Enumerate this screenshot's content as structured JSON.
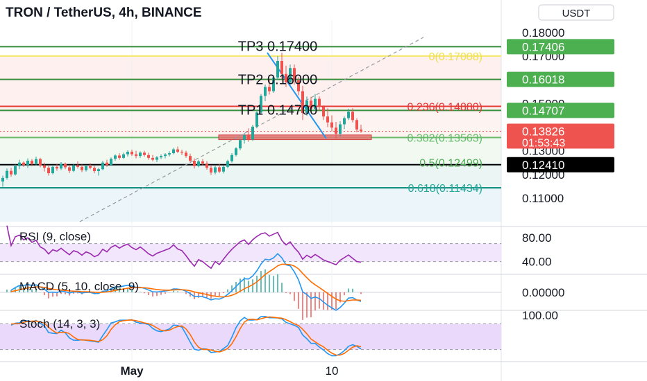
{
  "header": {
    "title": "TRON / TetherUS, 4h, BINANCE",
    "currency": "USDT"
  },
  "chart_data": {
    "type": "candlestick",
    "symbol": "TRON / TetherUS",
    "interval": "4h",
    "exchange": "BINANCE",
    "main_pane": {
      "ylim": [
        0.1,
        0.185
      ],
      "y_ticks": [
        "0.18000",
        "0.17000",
        "0.16000",
        "0.15000",
        "0.13000",
        "0.12000",
        "0.11000"
      ],
      "y_tick_values": [
        0.18,
        0.17,
        0.16,
        0.15,
        0.13,
        0.12,
        0.11
      ],
      "price_labels": [
        {
          "text": "0.17406",
          "value": 0.17406,
          "color": "#4caf50",
          "text_color": "#ffffff"
        },
        {
          "text": "0.16018",
          "value": 0.16018,
          "color": "#4caf50",
          "text_color": "#ffffff"
        },
        {
          "text": "0.14707",
          "value": 0.14707,
          "color": "#4caf50",
          "text_color": "#ffffff"
        },
        {
          "text": "0.13826",
          "value": 0.13826,
          "color": "#ef5350",
          "text_color": "#ffffff",
          "countdown": "01:53:43"
        },
        {
          "text": "0.12410",
          "value": 0.1241,
          "color": "#000000",
          "text_color": "#ffffff"
        }
      ],
      "horizontal_lines": [
        {
          "value": 0.17406,
          "color": "#388e3c"
        },
        {
          "value": 0.16018,
          "color": "#388e3c"
        },
        {
          "value": 0.14707,
          "color": "#388e3c"
        },
        {
          "value": 0.1488,
          "color": "#e53935"
        },
        {
          "value": 0.1356,
          "color": "#66bb6a"
        },
        {
          "value": 0.1241,
          "color": "#000000"
        },
        {
          "value": 0.11434,
          "color": "#00897b"
        },
        {
          "value": 0.17008,
          "color": "#f5e663"
        }
      ],
      "fib_levels": [
        {
          "label": "0(0.17008)",
          "value": 0.17008,
          "color": "#f0e050"
        },
        {
          "label": "0.236(0.14880)",
          "value": 0.1488,
          "color": "#e53935"
        },
        {
          "label": "0.382(0.13563)",
          "value": 0.13563,
          "color": "#66bb6a"
        },
        {
          "label": "0.5(0.12499)",
          "value": 0.12499,
          "color": "#4caf50"
        },
        {
          "label": "0.618(0.11434)",
          "value": 0.11434,
          "color": "#26a69a"
        }
      ],
      "annotations": [
        {
          "text": "TP3 0.17400",
          "value": 0.174
        },
        {
          "text": "TP2 0.16000",
          "value": 0.16
        },
        {
          "text": "TP1 0.14700",
          "value": 0.147
        }
      ],
      "candles": [
        [
          0.117,
          0.1195,
          0.1148,
          0.1185
        ],
        [
          0.1185,
          0.1225,
          0.1178,
          0.1215
        ],
        [
          0.1215,
          0.1228,
          0.119,
          0.12
        ],
        [
          0.12,
          0.1242,
          0.1195,
          0.1235
        ],
        [
          0.1235,
          0.1262,
          0.1222,
          0.125
        ],
        [
          0.125,
          0.1255,
          0.1232,
          0.124
        ],
        [
          0.124,
          0.1268,
          0.1228,
          0.1258
        ],
        [
          0.1258,
          0.1265,
          0.1235,
          0.1245
        ],
        [
          0.1245,
          0.1275,
          0.1238,
          0.1265
        ],
        [
          0.1265,
          0.127,
          0.123,
          0.1238
        ],
        [
          0.1238,
          0.125,
          0.1212,
          0.1228
        ],
        [
          0.1228,
          0.124,
          0.1195,
          0.1205
        ],
        [
          0.1205,
          0.124,
          0.12,
          0.1232
        ],
        [
          0.1232,
          0.1245,
          0.1215,
          0.1225
        ],
        [
          0.1225,
          0.1252,
          0.1218,
          0.1245
        ],
        [
          0.1245,
          0.125,
          0.1222,
          0.123
        ],
        [
          0.123,
          0.124,
          0.1205,
          0.1215
        ],
        [
          0.1215,
          0.1245,
          0.121,
          0.1238
        ],
        [
          0.1238,
          0.1255,
          0.1225,
          0.1232
        ],
        [
          0.1232,
          0.1242,
          0.121,
          0.1218
        ],
        [
          0.1218,
          0.124,
          0.1212,
          0.1235
        ],
        [
          0.1235,
          0.1248,
          0.1222,
          0.1228
        ],
        [
          0.1228,
          0.1236,
          0.1205,
          0.1214
        ],
        [
          0.1214,
          0.1228,
          0.1195,
          0.1222
        ],
        [
          0.1222,
          0.1258,
          0.1218,
          0.125
        ],
        [
          0.125,
          0.1262,
          0.1232,
          0.124
        ],
        [
          0.124,
          0.1272,
          0.1236,
          0.1266
        ],
        [
          0.1266,
          0.1285,
          0.1258,
          0.128
        ],
        [
          0.128,
          0.129,
          0.1262,
          0.127
        ],
        [
          0.127,
          0.1292,
          0.1265,
          0.1285
        ],
        [
          0.1285,
          0.1302,
          0.1275,
          0.1296
        ],
        [
          0.1296,
          0.1305,
          0.1278,
          0.1285
        ],
        [
          0.1285,
          0.13,
          0.1268,
          0.1278
        ],
        [
          0.1278,
          0.1298,
          0.127,
          0.1292
        ],
        [
          0.1292,
          0.13,
          0.1275,
          0.1282
        ],
        [
          0.1282,
          0.1292,
          0.1262,
          0.127
        ],
        [
          0.127,
          0.1282,
          0.1255,
          0.1262
        ],
        [
          0.1262,
          0.1278,
          0.1252,
          0.1272
        ],
        [
          0.1272,
          0.1285,
          0.1265,
          0.1278
        ],
        [
          0.1278,
          0.129,
          0.1268,
          0.1284
        ],
        [
          0.1284,
          0.1298,
          0.1276,
          0.129
        ],
        [
          0.129,
          0.1312,
          0.1285,
          0.1306
        ],
        [
          0.1306,
          0.1318,
          0.129,
          0.1296
        ],
        [
          0.1296,
          0.1304,
          0.1282,
          0.1292
        ],
        [
          0.1292,
          0.13,
          0.127,
          0.1278
        ],
        [
          0.1278,
          0.1288,
          0.125,
          0.1258
        ],
        [
          0.1258,
          0.1268,
          0.1225,
          0.1235
        ],
        [
          0.1235,
          0.1262,
          0.123,
          0.1255
        ],
        [
          0.1255,
          0.1265,
          0.1238,
          0.1246
        ],
        [
          0.1246,
          0.1256,
          0.122,
          0.1228
        ],
        [
          0.1228,
          0.124,
          0.1198,
          0.1208
        ],
        [
          0.1208,
          0.1236,
          0.12,
          0.123
        ],
        [
          0.123,
          0.1245,
          0.1205,
          0.1212
        ],
        [
          0.1212,
          0.1238,
          0.1204,
          0.1232
        ],
        [
          0.1232,
          0.1262,
          0.1226,
          0.1256
        ],
        [
          0.1256,
          0.129,
          0.125,
          0.1282
        ],
        [
          0.1282,
          0.1316,
          0.1276,
          0.131
        ],
        [
          0.131,
          0.1352,
          0.1302,
          0.1345
        ],
        [
          0.1345,
          0.1375,
          0.133,
          0.1366
        ],
        [
          0.1366,
          0.1395,
          0.1338,
          0.1348
        ],
        [
          0.1348,
          0.141,
          0.1342,
          0.1402
        ],
        [
          0.1402,
          0.147,
          0.1395,
          0.1462
        ],
        [
          0.1462,
          0.154,
          0.1452,
          0.1532
        ],
        [
          0.1532,
          0.158,
          0.151,
          0.157
        ],
        [
          0.157,
          0.16,
          0.1538,
          0.1552
        ],
        [
          0.1552,
          0.162,
          0.1545,
          0.161
        ],
        [
          0.161,
          0.17,
          0.1598,
          0.168
        ],
        [
          0.168,
          0.1715,
          0.1605,
          0.1625
        ],
        [
          0.1625,
          0.166,
          0.157,
          0.159
        ],
        [
          0.159,
          0.1665,
          0.158,
          0.165
        ],
        [
          0.165,
          0.1665,
          0.158,
          0.1598
        ],
        [
          0.1598,
          0.1612,
          0.1535,
          0.1552
        ],
        [
          0.1552,
          0.1575,
          0.143,
          0.146
        ],
        [
          0.146,
          0.153,
          0.1448,
          0.1512
        ],
        [
          0.1512,
          0.1528,
          0.1462,
          0.1478
        ],
        [
          0.1478,
          0.154,
          0.147,
          0.152
        ],
        [
          0.152,
          0.153,
          0.147,
          0.1486
        ],
        [
          0.1486,
          0.1492,
          0.143,
          0.1445
        ],
        [
          0.1445,
          0.148,
          0.14,
          0.142
        ],
        [
          0.142,
          0.145,
          0.1382,
          0.1398
        ],
        [
          0.1398,
          0.1422,
          0.1352,
          0.1372
        ],
        [
          0.1372,
          0.1425,
          0.136,
          0.1412
        ],
        [
          0.1412,
          0.1445,
          0.1392,
          0.1438
        ],
        [
          0.1438,
          0.1478,
          0.143,
          0.1465
        ],
        [
          0.1465,
          0.148,
          0.142,
          0.143
        ],
        [
          0.143,
          0.1438,
          0.1378,
          0.139
        ],
        [
          0.139,
          0.141,
          0.1376,
          0.1383
        ]
      ],
      "support_zone": {
        "from": 0.1347,
        "to": 0.1367,
        "color": "#e57373"
      }
    },
    "rsi": {
      "label": "RSI (9, close)",
      "ylim": [
        20,
        95
      ],
      "y_ticks": [
        "80.00",
        "40.00"
      ],
      "y_tick_values": [
        80,
        40
      ],
      "band": [
        40,
        70
      ]
    },
    "macd": {
      "label": "MACD (5, 10, close, 9)",
      "ylim": [
        -0.0035,
        0.0035
      ],
      "y_ticks": [
        "0.00000"
      ],
      "y_tick_values": [
        0
      ]
    },
    "stoch": {
      "label": "Stoch (14, 3, 3)",
      "ylim": [
        -5,
        110
      ],
      "y_ticks": [
        "100.00"
      ],
      "y_tick_values": [
        100
      ],
      "band": [
        20,
        80
      ]
    },
    "x_ticks": [
      {
        "label": "May",
        "index": 31
      },
      {
        "label": "10",
        "index": 79
      }
    ]
  }
}
